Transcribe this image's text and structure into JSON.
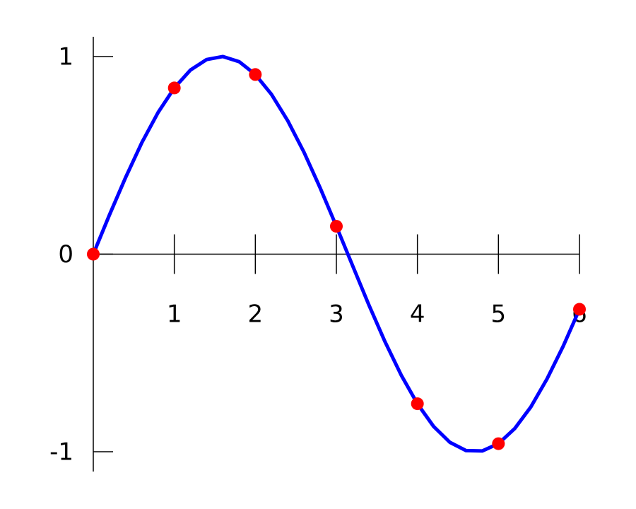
{
  "chart_data": {
    "type": "line",
    "curve": {
      "color": "#0000ff",
      "x": [
        0,
        0.2,
        0.4,
        0.6,
        0.8,
        1.0,
        1.2,
        1.4,
        1.6,
        1.8,
        2.0,
        2.2,
        2.4,
        2.6,
        2.8,
        3.0,
        3.2,
        3.4,
        3.6,
        3.8,
        4.0,
        4.2,
        4.4,
        4.6,
        4.8,
        5.0,
        5.2,
        5.4,
        5.6,
        5.8,
        6.0
      ],
      "values": [
        0,
        0.199,
        0.389,
        0.565,
        0.717,
        0.841,
        0.932,
        0.985,
        1.0,
        0.974,
        0.909,
        0.808,
        0.675,
        0.516,
        0.335,
        0.141,
        -0.058,
        -0.256,
        -0.443,
        -0.612,
        -0.757,
        -0.872,
        -0.952,
        -0.994,
        -0.996,
        -0.959,
        -0.883,
        -0.773,
        -0.631,
        -0.465,
        -0.279
      ]
    },
    "points": {
      "color": "#ff0000",
      "x": [
        0,
        1,
        2,
        3,
        4,
        5,
        6
      ],
      "values": [
        0,
        0.841,
        0.909,
        0.141,
        -0.757,
        -0.959,
        -0.279
      ]
    },
    "xlim": [
      0,
      6
    ],
    "xticks": [
      1,
      2,
      3,
      4,
      5,
      6
    ],
    "ylim": [
      -1.1,
      1.1
    ],
    "yticks": [
      -1,
      0,
      1
    ]
  }
}
